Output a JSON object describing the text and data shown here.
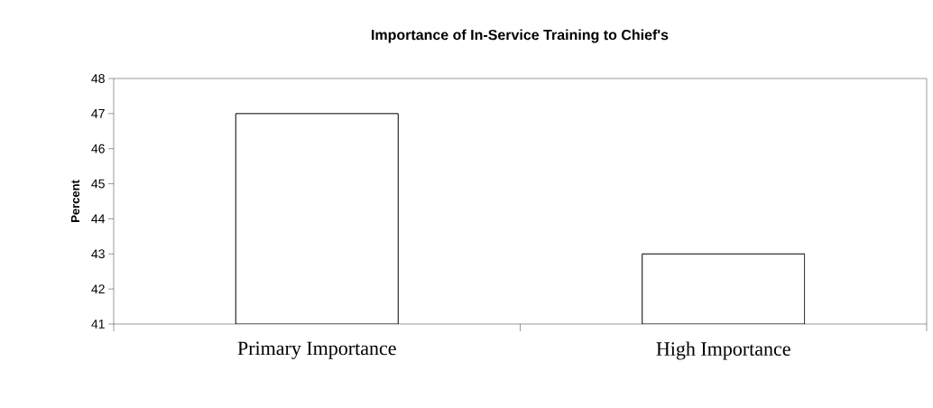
{
  "chart_data": {
    "type": "bar",
    "title": "Importance of In-Service Training to Chief's",
    "ylabel": "Percent",
    "categories": [
      "Primary Importance",
      "High Importance"
    ],
    "values": [
      47,
      43
    ],
    "color": "#ffffff",
    "ylim": [
      41,
      48
    ],
    "yticks": [
      41,
      42,
      43,
      44,
      45,
      46,
      47,
      48
    ]
  }
}
